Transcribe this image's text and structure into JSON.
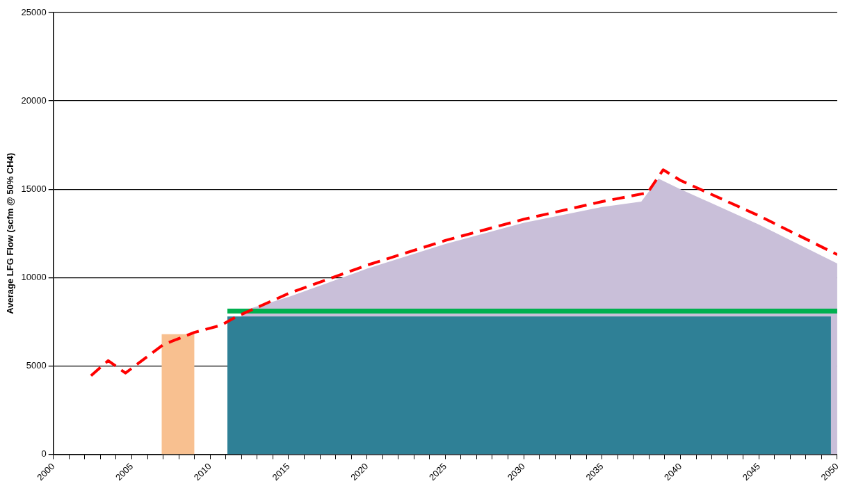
{
  "chart_data": {
    "type": "area",
    "ylabel": "Average LFG Flow (scfm @ 50% CH4)",
    "xlim": [
      2000,
      2050
    ],
    "ylim": [
      0,
      25000
    ],
    "xticks": [
      2000,
      {
        "value": 2001,
        "label": null
      },
      {
        "value": 2002,
        "label": null
      },
      {
        "value": 2003,
        "label": null
      },
      {
        "value": 2004,
        "label": null
      },
      2005,
      {
        "value": 2006,
        "label": null
      },
      {
        "value": 2007,
        "label": null
      },
      {
        "value": 2008,
        "label": null
      },
      {
        "value": 2009,
        "label": null
      },
      2010,
      {
        "value": 2011,
        "label": null
      },
      {
        "value": 2012,
        "label": null
      },
      {
        "value": 2013,
        "label": null
      },
      {
        "value": 2014,
        "label": null
      },
      2015,
      {
        "value": 2016,
        "label": null
      },
      {
        "value": 2017,
        "label": null
      },
      {
        "value": 2018,
        "label": null
      },
      {
        "value": 2019,
        "label": null
      },
      2020,
      {
        "value": 2021,
        "label": null
      },
      {
        "value": 2022,
        "label": null
      },
      {
        "value": 2023,
        "label": null
      },
      {
        "value": 2024,
        "label": null
      },
      2025,
      {
        "value": 2026,
        "label": null
      },
      {
        "value": 2027,
        "label": null
      },
      {
        "value": 2028,
        "label": null
      },
      {
        "value": 2029,
        "label": null
      },
      2030,
      {
        "value": 2031,
        "label": null
      },
      {
        "value": 2032,
        "label": null
      },
      {
        "value": 2033,
        "label": null
      },
      {
        "value": 2034,
        "label": null
      },
      2035,
      {
        "value": 2036,
        "label": null
      },
      {
        "value": 2037,
        "label": null
      },
      {
        "value": 2038,
        "label": null
      },
      {
        "value": 2039,
        "label": null
      },
      2040,
      {
        "value": 2041,
        "label": null
      },
      {
        "value": 2042,
        "label": null
      },
      {
        "value": 2043,
        "label": null
      },
      {
        "value": 2044,
        "label": null
      },
      2045,
      {
        "value": 2046,
        "label": null
      },
      {
        "value": 2047,
        "label": null
      },
      {
        "value": 2048,
        "label": null
      },
      {
        "value": 2049,
        "label": null
      },
      2050
    ],
    "yticks": [
      0,
      5000,
      10000,
      15000,
      20000,
      25000
    ],
    "grid": "y",
    "legend": false,
    "marker": "none",
    "series": [
      {
        "type": "area",
        "color": "#c9bfd9",
        "x": [
          2012,
          2015,
          2020,
          2025,
          2030,
          2035,
          2037.5,
          2038.6,
          2040,
          2045,
          2050
        ],
        "values": [
          8100,
          8900,
          10500,
          11900,
          13100,
          14000,
          14300,
          15600,
          15000,
          13000,
          10800
        ]
      },
      {
        "type": "area",
        "color": "#2f8096",
        "x": [
          2011.1,
          2049.6
        ],
        "values": [
          7800,
          7800
        ]
      },
      {
        "type": "area",
        "color": "#f8c090",
        "x": [
          2006.9,
          2009
        ],
        "values": [
          6800,
          6800
        ]
      },
      {
        "type": "line",
        "color": "#00b050",
        "x": [
          2011.1,
          2050
        ],
        "values": [
          8100,
          8100
        ]
      },
      {
        "type": "line",
        "color": "#ff0000",
        "line_style": "dashed",
        "x": [
          2002.4,
          2003.5,
          2004.6,
          2007,
          2009,
          2010.7,
          2011.7,
          2015,
          2020,
          2025,
          2030,
          2035,
          2037.9,
          2038.9,
          2040,
          2045,
          2050
        ],
        "values": [
          4450,
          5300,
          4600,
          6200,
          6900,
          7300,
          7800,
          9100,
          10700,
          12100,
          13300,
          14300,
          14800,
          16100,
          15500,
          13500,
          11300
        ]
      }
    ]
  }
}
